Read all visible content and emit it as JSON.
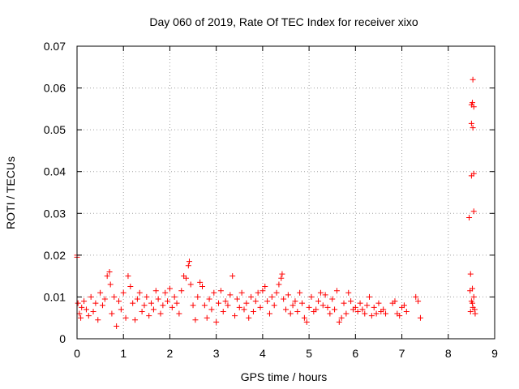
{
  "chart_data": {
    "type": "scatter",
    "title": "Day 060 of 2019, Rate Of TEC Index for receiver xixo",
    "xlabel": "GPS time / hours",
    "ylabel": "ROTI / TECUs",
    "xlim": [
      0,
      9
    ],
    "ylim": [
      0,
      0.07
    ],
    "x_ticks": [
      "0",
      "1",
      "2",
      "3",
      "4",
      "5",
      "6",
      "7",
      "8",
      "9"
    ],
    "y_ticks": [
      "0",
      "0.01",
      "0.02",
      "0.03",
      "0.04",
      "0.05",
      "0.06",
      "0.07"
    ],
    "grid": true,
    "marker": "+",
    "colors": {
      "series": "#ff0000",
      "grid": "#a0a0a0",
      "axis": "#000000"
    },
    "series": [
      {
        "name": "ROTI",
        "points": [
          [
            0.0,
            0.0195
          ],
          [
            0.0,
            0.02
          ],
          [
            0.02,
            0.0085
          ],
          [
            0.05,
            0.006
          ],
          [
            0.08,
            0.005
          ],
          [
            0.1,
            0.0075
          ],
          [
            0.15,
            0.009
          ],
          [
            0.2,
            0.007
          ],
          [
            0.25,
            0.0055
          ],
          [
            0.3,
            0.01
          ],
          [
            0.35,
            0.0065
          ],
          [
            0.4,
            0.0085
          ],
          [
            0.45,
            0.0045
          ],
          [
            0.5,
            0.011
          ],
          [
            0.55,
            0.008
          ],
          [
            0.6,
            0.0095
          ],
          [
            0.65,
            0.015
          ],
          [
            0.7,
            0.016
          ],
          [
            0.72,
            0.013
          ],
          [
            0.75,
            0.006
          ],
          [
            0.8,
            0.01
          ],
          [
            0.85,
            0.003
          ],
          [
            0.9,
            0.009
          ],
          [
            0.95,
            0.007
          ],
          [
            1.0,
            0.011
          ],
          [
            1.05,
            0.005
          ],
          [
            1.1,
            0.015
          ],
          [
            1.15,
            0.0125
          ],
          [
            1.2,
            0.0085
          ],
          [
            1.25,
            0.0045
          ],
          [
            1.3,
            0.0095
          ],
          [
            1.35,
            0.011
          ],
          [
            1.4,
            0.0065
          ],
          [
            1.45,
            0.008
          ],
          [
            1.5,
            0.01
          ],
          [
            1.55,
            0.0055
          ],
          [
            1.6,
            0.0085
          ],
          [
            1.65,
            0.007
          ],
          [
            1.7,
            0.0115
          ],
          [
            1.75,
            0.0095
          ],
          [
            1.8,
            0.006
          ],
          [
            1.85,
            0.008
          ],
          [
            1.9,
            0.011
          ],
          [
            1.95,
            0.009
          ],
          [
            2.0,
            0.012
          ],
          [
            2.05,
            0.0075
          ],
          [
            2.1,
            0.01
          ],
          [
            2.15,
            0.0085
          ],
          [
            2.2,
            0.006
          ],
          [
            2.25,
            0.0115
          ],
          [
            2.3,
            0.015
          ],
          [
            2.35,
            0.0145
          ],
          [
            2.4,
            0.0175
          ],
          [
            2.42,
            0.0185
          ],
          [
            2.45,
            0.013
          ],
          [
            2.5,
            0.008
          ],
          [
            2.55,
            0.0045
          ],
          [
            2.6,
            0.01
          ],
          [
            2.65,
            0.0135
          ],
          [
            2.7,
            0.0125
          ],
          [
            2.75,
            0.008
          ],
          [
            2.8,
            0.005
          ],
          [
            2.85,
            0.0095
          ],
          [
            2.9,
            0.007
          ],
          [
            2.95,
            0.011
          ],
          [
            3.0,
            0.004
          ],
          [
            3.05,
            0.0085
          ],
          [
            3.1,
            0.0115
          ],
          [
            3.15,
            0.0065
          ],
          [
            3.2,
            0.009
          ],
          [
            3.25,
            0.008
          ],
          [
            3.3,
            0.0105
          ],
          [
            3.35,
            0.015
          ],
          [
            3.4,
            0.0055
          ],
          [
            3.45,
            0.0095
          ],
          [
            3.5,
            0.0075
          ],
          [
            3.55,
            0.011
          ],
          [
            3.6,
            0.007
          ],
          [
            3.65,
            0.0085
          ],
          [
            3.7,
            0.005
          ],
          [
            3.75,
            0.01
          ],
          [
            3.8,
            0.0065
          ],
          [
            3.85,
            0.009
          ],
          [
            3.9,
            0.011
          ],
          [
            3.95,
            0.0075
          ],
          [
            4.0,
            0.0115
          ],
          [
            4.05,
            0.0125
          ],
          [
            4.1,
            0.009
          ],
          [
            4.15,
            0.006
          ],
          [
            4.2,
            0.01
          ],
          [
            4.25,
            0.008
          ],
          [
            4.3,
            0.011
          ],
          [
            4.35,
            0.013
          ],
          [
            4.4,
            0.0145
          ],
          [
            4.42,
            0.0155
          ],
          [
            4.45,
            0.0095
          ],
          [
            4.5,
            0.007
          ],
          [
            4.55,
            0.0105
          ],
          [
            4.6,
            0.006
          ],
          [
            4.65,
            0.008
          ],
          [
            4.7,
            0.009
          ],
          [
            4.75,
            0.0065
          ],
          [
            4.8,
            0.011
          ],
          [
            4.85,
            0.0085
          ],
          [
            4.9,
            0.005
          ],
          [
            4.95,
            0.004
          ],
          [
            5.0,
            0.0075
          ],
          [
            5.05,
            0.01
          ],
          [
            5.1,
            0.0065
          ],
          [
            5.15,
            0.007
          ],
          [
            5.2,
            0.009
          ],
          [
            5.25,
            0.011
          ],
          [
            5.3,
            0.008
          ],
          [
            5.35,
            0.0105
          ],
          [
            5.4,
            0.0075
          ],
          [
            5.45,
            0.006
          ],
          [
            5.5,
            0.0095
          ],
          [
            5.55,
            0.007
          ],
          [
            5.6,
            0.0115
          ],
          [
            5.65,
            0.004
          ],
          [
            5.7,
            0.005
          ],
          [
            5.75,
            0.0085
          ],
          [
            5.8,
            0.006
          ],
          [
            5.85,
            0.011
          ],
          [
            5.9,
            0.009
          ],
          [
            5.95,
            0.007
          ],
          [
            6.0,
            0.0075
          ],
          [
            6.05,
            0.0065
          ],
          [
            6.1,
            0.0085
          ],
          [
            6.15,
            0.007
          ],
          [
            6.2,
            0.006
          ],
          [
            6.25,
            0.008
          ],
          [
            6.3,
            0.01
          ],
          [
            6.35,
            0.0055
          ],
          [
            6.4,
            0.0075
          ],
          [
            6.45,
            0.006
          ],
          [
            6.5,
            0.0085
          ],
          [
            6.55,
            0.0065
          ],
          [
            6.6,
            0.007
          ],
          [
            6.65,
            0.006
          ],
          [
            6.8,
            0.0085
          ],
          [
            6.85,
            0.009
          ],
          [
            6.9,
            0.006
          ],
          [
            6.95,
            0.0055
          ],
          [
            7.0,
            0.0075
          ],
          [
            7.05,
            0.008
          ],
          [
            7.1,
            0.0065
          ],
          [
            7.3,
            0.01
          ],
          [
            7.35,
            0.009
          ],
          [
            7.4,
            0.005
          ],
          [
            8.45,
            0.029
          ],
          [
            8.47,
            0.0115
          ],
          [
            8.48,
            0.0155
          ],
          [
            8.5,
            0.056
          ],
          [
            8.5,
            0.039
          ],
          [
            8.5,
            0.0515
          ],
          [
            8.5,
            0.009
          ],
          [
            8.52,
            0.0565
          ],
          [
            8.52,
            0.012
          ],
          [
            8.53,
            0.062
          ],
          [
            8.53,
            0.0505
          ],
          [
            8.53,
            0.0075
          ],
          [
            8.55,
            0.0555
          ],
          [
            8.55,
            0.0395
          ],
          [
            8.55,
            0.0305
          ],
          [
            8.55,
            0.01
          ],
          [
            8.57,
            0.007
          ],
          [
            8.58,
            0.006
          ],
          [
            8.52,
            0.0085
          ],
          [
            8.48,
            0.0065
          ]
        ]
      }
    ]
  }
}
